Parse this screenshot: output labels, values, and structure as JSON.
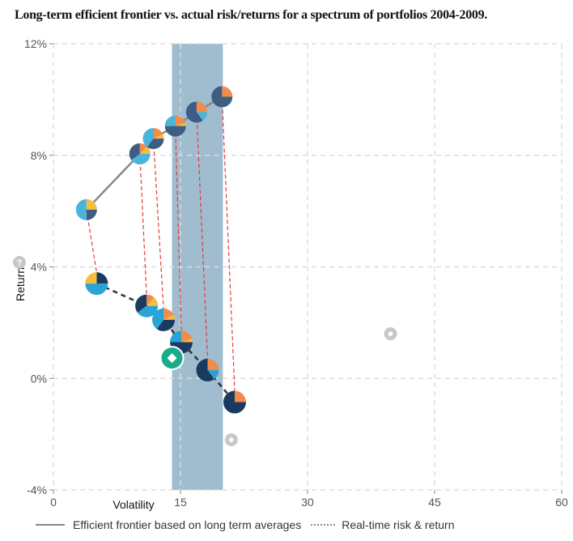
{
  "chart_data": {
    "type": "scatter",
    "title": "Long-term efficient frontier vs. actual risk/returns for a spectrum of portfolios 2004-2009.",
    "xlabel": "Volatility",
    "ylabel": "Return",
    "xlim": [
      0,
      60
    ],
    "ylim": [
      -4,
      12
    ],
    "x_ticks": [
      "0",
      "15",
      "30",
      "45",
      "60"
    ],
    "y_ticks": [
      "-4%",
      "0%",
      "4%",
      "8%",
      "12%"
    ],
    "grid": true,
    "highlight_band": {
      "x_from": 14,
      "x_to": 20,
      "color": "#a0bccf"
    },
    "colors": {
      "yellow": "#f5be3c",
      "lightblue": "#4bb4dc",
      "navy": "#3d5d82",
      "orange": "#f28c4b",
      "darknavy": "#1b3a60",
      "blue": "#2aa3d6",
      "connector": "#e83b3b",
      "green": "#1aab8a",
      "gray": "#c8c8c8"
    },
    "series": [
      {
        "name": "Efficient frontier based on long term averages",
        "style": "solid",
        "points": [
          {
            "x": 3.9,
            "y": 6.05,
            "pie": [
              [
                "yellow",
                0.25
              ],
              [
                "navy",
                0.25
              ],
              [
                "lightblue",
                0.5
              ]
            ]
          },
          {
            "x": 10.2,
            "y": 8.05,
            "pie": [
              [
                "orange",
                0.12
              ],
              [
                "yellow",
                0.13
              ],
              [
                "lightblue",
                0.4
              ],
              [
                "navy",
                0.35
              ]
            ]
          },
          {
            "x": 11.8,
            "y": 8.6,
            "pie": [
              [
                "orange",
                0.18
              ],
              [
                "yellow",
                0.07
              ],
              [
                "navy",
                0.35
              ],
              [
                "lightblue",
                0.4
              ]
            ]
          },
          {
            "x": 14.4,
            "y": 9.05,
            "pie": [
              [
                "orange",
                0.2
              ],
              [
                "yellow",
                0.05
              ],
              [
                "navy",
                0.5
              ],
              [
                "lightblue",
                0.25
              ]
            ]
          },
          {
            "x": 16.9,
            "y": 9.55,
            "pie": [
              [
                "orange",
                0.25
              ],
              [
                "lightblue",
                0.15
              ],
              [
                "navy",
                0.6
              ]
            ]
          },
          {
            "x": 19.9,
            "y": 10.1,
            "pie": [
              [
                "orange",
                0.25
              ],
              [
                "navy",
                0.75
              ]
            ]
          }
        ]
      },
      {
        "name": "Real-time risk & return",
        "style": "dotted",
        "points": [
          {
            "x": 5.1,
            "y": 3.4,
            "pie": [
              [
                "darknavy",
                0.25
              ],
              [
                "blue",
                0.5
              ],
              [
                "yellow",
                0.25
              ]
            ]
          },
          {
            "x": 11.0,
            "y": 2.6,
            "pie": [
              [
                "orange",
                0.12
              ],
              [
                "yellow",
                0.13
              ],
              [
                "blue",
                0.4
              ],
              [
                "darknavy",
                0.35
              ]
            ]
          },
          {
            "x": 13.0,
            "y": 2.1,
            "pie": [
              [
                "orange",
                0.18
              ],
              [
                "yellow",
                0.07
              ],
              [
                "darknavy",
                0.35
              ],
              [
                "blue",
                0.4
              ]
            ]
          },
          {
            "x": 15.1,
            "y": 1.3,
            "pie": [
              [
                "orange",
                0.2
              ],
              [
                "yellow",
                0.05
              ],
              [
                "darknavy",
                0.5
              ],
              [
                "blue",
                0.25
              ]
            ]
          },
          {
            "x": 18.2,
            "y": 0.3,
            "pie": [
              [
                "orange",
                0.25
              ],
              [
                "blue",
                0.15
              ],
              [
                "darknavy",
                0.6
              ]
            ]
          },
          {
            "x": 21.4,
            "y": -0.85,
            "pie": [
              [
                "orange",
                0.25
              ],
              [
                "darknavy",
                0.75
              ]
            ]
          }
        ]
      }
    ],
    "markers": [
      {
        "name": "selected-portfolio",
        "x": 14.0,
        "y": 0.73,
        "color": "green"
      },
      {
        "name": "benchmark-a",
        "x": 39.8,
        "y": 1.6,
        "color": "gray"
      },
      {
        "name": "benchmark-b",
        "x": 21.0,
        "y": -2.2,
        "color": "gray"
      }
    ],
    "legend": [
      "Efficient frontier based on long term averages",
      "Real-time risk & return"
    ],
    "legend_position": "bottom"
  },
  "help_icon": "?"
}
